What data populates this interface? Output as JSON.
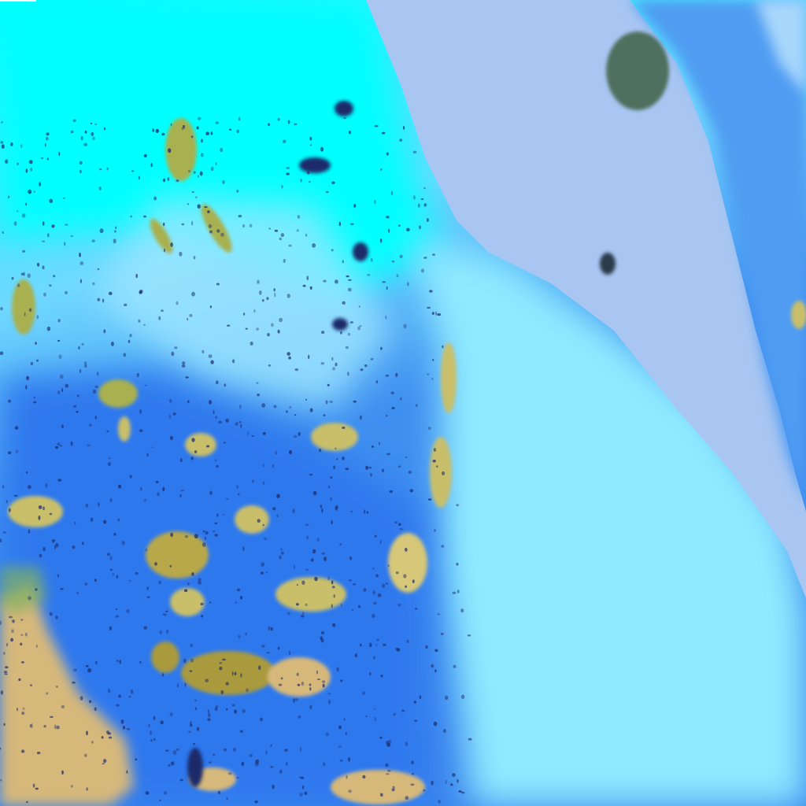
{
  "image": {
    "kind": "false-color satellite imagery",
    "colors": {
      "bright_cyan_land": "#00ffff",
      "pale_cyan_land": "#8feaff",
      "blue_land": "#3f8ff0",
      "deep_blue": "#2a6fe8",
      "sea": "#a9c6f2",
      "far_coast_blue": "#4f9cf2",
      "cloud_olive": "#c9bf6a",
      "cloud_dark_olive": "#a89a3c",
      "tan_cloud_mass": "#d6b87a",
      "speckle_dark": "#1c2a6a"
    }
  }
}
